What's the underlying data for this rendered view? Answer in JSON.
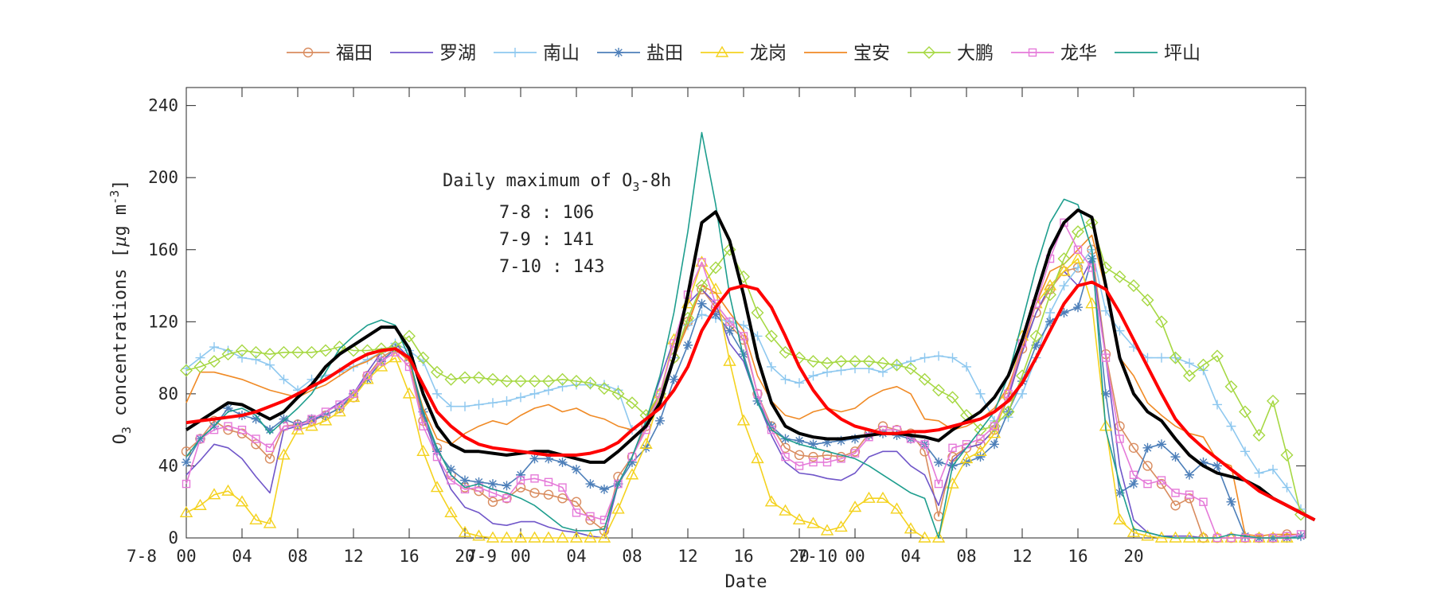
{
  "chart_data": {
    "type": "line",
    "xlabel": "Date",
    "ylabel": "O3 concentrations [µg m-3]",
    "ylabel_parts": {
      "main": "O",
      "sub": "3",
      "rest": " concentrations [",
      "mu": "µ",
      "unit": "g m",
      "sup": "-3",
      "close": "]"
    },
    "ylim": [
      0,
      250
    ],
    "xlim": [
      0,
      71
    ],
    "x_unit": "hours from 7-8 00:00",
    "yticks": [
      0,
      40,
      80,
      120,
      160,
      200,
      240
    ],
    "xticks": [
      {
        "x": -3.2,
        "label": "7-8"
      },
      {
        "x": 0,
        "label": "00"
      },
      {
        "x": 4,
        "label": "04"
      },
      {
        "x": 8,
        "label": "08"
      },
      {
        "x": 12,
        "label": "12"
      },
      {
        "x": 16,
        "label": "16"
      },
      {
        "x": 20,
        "label": "20"
      },
      {
        "x": 21.2,
        "label": "7-9"
      },
      {
        "x": 24,
        "label": "00"
      },
      {
        "x": 28,
        "label": "04"
      },
      {
        "x": 32,
        "label": "08"
      },
      {
        "x": 36,
        "label": "12"
      },
      {
        "x": 40,
        "label": "16"
      },
      {
        "x": 44,
        "label": "20"
      },
      {
        "x": 45.3,
        "label": "7-10"
      },
      {
        "x": 48,
        "label": "00"
      },
      {
        "x": 52,
        "label": "04"
      },
      {
        "x": 56,
        "label": "08"
      },
      {
        "x": 60,
        "label": "12"
      },
      {
        "x": 64,
        "label": "16"
      },
      {
        "x": 68,
        "label": "20"
      }
    ],
    "grid": false,
    "legend_placement": "top, outside, horizontal",
    "annotation": {
      "title": "Daily maximum of O3-8h",
      "title_parts": {
        "before": "Daily maximum of O",
        "sub": "3",
        "after": "-8h"
      },
      "lines": [
        "7-8 : 106",
        "7-9 : 141",
        "7-10 : 143"
      ]
    },
    "series": [
      {
        "name": "福田",
        "color": "#d98c5f",
        "marker": "circle",
        "values": [
          48,
          55,
          65,
          60,
          58,
          52,
          44,
          62,
          63,
          65,
          68,
          72,
          78,
          90,
          100,
          105,
          98,
          65,
          50,
          35,
          28,
          26,
          20,
          22,
          28,
          25,
          24,
          22,
          20,
          10,
          4,
          34,
          45,
          62,
          80,
          100,
          120,
          138,
          128,
          118,
          110,
          80,
          62,
          50,
          46,
          45,
          46,
          45,
          48,
          58,
          62,
          60,
          58,
          48,
          12,
          45,
          50,
          52,
          60,
          78,
          105,
          125,
          138,
          148,
          150,
          160,
          102,
          62,
          50,
          40,
          30,
          18,
          22,
          0,
          0,
          0,
          0,
          0,
          0,
          2
        ]
      },
      {
        "name": "罗湖",
        "color": "#7056c9",
        "marker": "none",
        "values": [
          35,
          43,
          52,
          50,
          44,
          34,
          25,
          60,
          62,
          64,
          70,
          75,
          80,
          92,
          103,
          108,
          100,
          68,
          45,
          27,
          17,
          14,
          8,
          7,
          9,
          9,
          6,
          4,
          3,
          1,
          0,
          30,
          45,
          65,
          88,
          110,
          130,
          138,
          130,
          108,
          98,
          76,
          57,
          42,
          36,
          35,
          33,
          32,
          36,
          45,
          48,
          48,
          40,
          35,
          18,
          43,
          50,
          52,
          60,
          78,
          103,
          125,
          140,
          148,
          140,
          155,
          100,
          40,
          10,
          3,
          1,
          1,
          1,
          0,
          0,
          0,
          0,
          0,
          0,
          0
        ]
      },
      {
        "name": "南山",
        "color": "#8ec8ef",
        "marker": "plus",
        "values": [
          94,
          100,
          106,
          104,
          100,
          99,
          96,
          88,
          82,
          88,
          90,
          92,
          95,
          99,
          103,
          108,
          104,
          98,
          80,
          73,
          73,
          74,
          75,
          76,
          78,
          80,
          82,
          84,
          85,
          85,
          85,
          82,
          60,
          65,
          80,
          100,
          118,
          124,
          122,
          120,
          118,
          112,
          95,
          88,
          86,
          90,
          92,
          93,
          94,
          94,
          92,
          96,
          98,
          100,
          101,
          100,
          95,
          80,
          65,
          67,
          80,
          100,
          125,
          140,
          150,
          160,
          126,
          115,
          106,
          100,
          100,
          100,
          97,
          93,
          74,
          62,
          48,
          36,
          38,
          28,
          16
        ]
      },
      {
        "name": "盐田",
        "color": "#4d7fb9",
        "marker": "asterisk",
        "values": [
          42,
          55,
          62,
          72,
          68,
          66,
          60,
          66,
          63,
          66,
          68,
          72,
          80,
          88,
          98,
          105,
          100,
          70,
          48,
          38,
          32,
          31,
          30,
          29,
          35,
          44,
          44,
          42,
          38,
          30,
          27,
          30,
          42,
          50,
          65,
          88,
          107,
          130,
          124,
          115,
          102,
          76,
          62,
          55,
          54,
          52,
          53,
          54,
          55,
          57,
          58,
          57,
          55,
          52,
          42,
          40,
          42,
          45,
          52,
          70,
          87,
          107,
          120,
          125,
          128,
          155,
          80,
          25,
          30,
          50,
          52,
          45,
          35,
          42,
          40,
          20,
          1,
          0,
          0,
          0,
          1
        ]
      },
      {
        "name": "龙岗",
        "color": "#f4d21f",
        "marker": "triangle",
        "values": [
          14,
          18,
          24,
          26,
          20,
          10,
          8,
          46,
          60,
          62,
          65,
          70,
          78,
          88,
          95,
          100,
          80,
          48,
          28,
          14,
          3,
          1,
          0,
          0,
          0,
          0,
          0,
          0,
          0,
          0,
          0,
          16,
          35,
          52,
          80,
          110,
          130,
          153,
          138,
          98,
          65,
          44,
          20,
          15,
          10,
          8,
          4,
          6,
          17,
          22,
          22,
          16,
          5,
          0,
          0,
          30,
          44,
          48,
          58,
          80,
          112,
          130,
          140,
          148,
          155,
          130,
          62,
          10,
          3,
          1,
          0,
          0,
          0,
          0,
          0,
          0,
          0,
          0,
          0,
          0
        ]
      },
      {
        "name": "宝安",
        "color": "#f08a25",
        "marker": "none",
        "values": [
          75,
          92,
          92,
          90,
          88,
          85,
          82,
          80,
          78,
          82,
          85,
          90,
          95,
          98,
          103,
          105,
          98,
          72,
          55,
          52,
          58,
          62,
          65,
          63,
          68,
          72,
          74,
          70,
          72,
          68,
          66,
          62,
          60,
          66,
          80,
          100,
          118,
          140,
          136,
          125,
          115,
          90,
          76,
          68,
          66,
          70,
          72,
          70,
          72,
          78,
          82,
          84,
          80,
          66,
          65,
          60,
          62,
          66,
          72,
          84,
          105,
          130,
          148,
          152,
          160,
          168,
          138,
          100,
          90,
          75,
          68,
          62,
          58,
          56,
          43,
          40,
          2,
          1,
          2,
          2,
          2
        ]
      },
      {
        "name": "大鹏",
        "color": "#a6d843",
        "marker": "diamond",
        "values": [
          93,
          95,
          98,
          102,
          104,
          103,
          102,
          103,
          103,
          103,
          104,
          106,
          104,
          104,
          105,
          106,
          112,
          100,
          92,
          88,
          89,
          89,
          88,
          87,
          87,
          87,
          87,
          88,
          87,
          86,
          83,
          80,
          75,
          68,
          80,
          100,
          122,
          140,
          150,
          160,
          145,
          125,
          112,
          103,
          100,
          98,
          97,
          98,
          98,
          98,
          97,
          96,
          94,
          88,
          82,
          78,
          68,
          60,
          62,
          70,
          90,
          112,
          135,
          155,
          170,
          175,
          150,
          145,
          140,
          132,
          120,
          100,
          90,
          96,
          101,
          84,
          70,
          57,
          76,
          46,
          13
        ]
      },
      {
        "name": "龙华",
        "color": "#e57ad9",
        "marker": "square",
        "values": [
          30,
          55,
          60,
          62,
          60,
          55,
          50,
          62,
          62,
          66,
          70,
          74,
          80,
          90,
          98,
          103,
          95,
          62,
          45,
          32,
          27,
          28,
          25,
          22,
          32,
          33,
          31,
          28,
          14,
          12,
          10,
          30,
          45,
          60,
          80,
          108,
          135,
          153,
          130,
          120,
          112,
          80,
          60,
          45,
          40,
          42,
          42,
          44,
          47,
          56,
          60,
          60,
          55,
          52,
          30,
          50,
          52,
          55,
          62,
          80,
          108,
          130,
          155,
          175,
          160,
          150,
          100,
          55,
          35,
          30,
          32,
          25,
          24,
          20,
          0,
          0,
          0,
          0,
          0,
          1,
          2
        ]
      },
      {
        "name": "坪山",
        "color": "#1e9e8e",
        "marker": "none",
        "values": [
          45,
          55,
          62,
          70,
          72,
          68,
          58,
          65,
          72,
          80,
          92,
          105,
          112,
          118,
          121,
          118,
          100,
          70,
          50,
          35,
          28,
          30,
          27,
          25,
          22,
          18,
          12,
          6,
          4,
          4,
          5,
          30,
          45,
          65,
          90,
          125,
          170,
          225,
          185,
          135,
          100,
          75,
          60,
          55,
          52,
          50,
          48,
          46,
          44,
          40,
          35,
          30,
          25,
          22,
          0,
          40,
          50,
          60,
          70,
          90,
          120,
          150,
          175,
          188,
          185,
          160,
          60,
          30,
          5,
          3,
          1,
          0,
          0,
          0,
          0,
          2,
          1,
          0,
          0,
          0,
          0
        ]
      },
      {
        "name": "",
        "color": "#000000",
        "marker": "none",
        "style": "thick",
        "values": [
          60,
          65,
          70,
          75,
          74,
          70,
          66,
          70,
          78,
          85,
          95,
          102,
          107,
          112,
          117,
          117,
          105,
          80,
          62,
          52,
          48,
          48,
          47,
          46,
          47,
          48,
          48,
          46,
          44,
          42,
          42,
          48,
          55,
          62,
          75,
          100,
          135,
          175,
          181,
          165,
          135,
          100,
          75,
          62,
          58,
          56,
          55,
          55,
          56,
          57,
          58,
          58,
          57,
          56,
          54,
          60,
          65,
          70,
          78,
          90,
          110,
          135,
          160,
          175,
          182,
          178,
          140,
          100,
          80,
          70,
          65,
          55,
          46,
          40,
          36,
          34,
          32,
          28,
          22,
          18,
          14,
          10
        ]
      },
      {
        "name": "",
        "color": "#ff0000",
        "marker": "none",
        "style": "thick",
        "values": [
          64,
          65,
          66,
          67,
          68,
          70,
          73,
          76,
          80,
          84,
          88,
          93,
          98,
          102,
          104,
          105,
          100,
          85,
          70,
          62,
          56,
          52,
          50,
          49,
          48,
          47,
          46,
          46,
          46,
          47,
          49,
          53,
          60,
          66,
          72,
          82,
          95,
          115,
          128,
          138,
          140,
          138,
          128,
          112,
          95,
          82,
          72,
          66,
          62,
          60,
          58,
          58,
          59,
          59,
          60,
          62,
          64,
          66,
          70,
          76,
          86,
          100,
          115,
          130,
          140,
          142,
          138,
          125,
          110,
          95,
          80,
          66,
          57,
          50,
          44,
          38,
          32,
          26,
          22,
          18,
          14,
          10
        ]
      }
    ]
  }
}
